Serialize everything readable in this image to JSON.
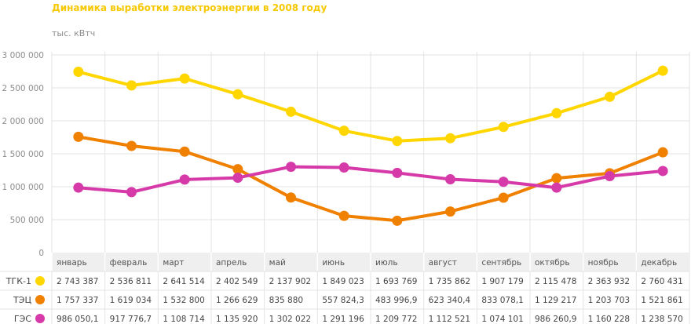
{
  "chart_data": {
    "type": "line",
    "title": "Динамика выработки электроэнергии в 2008 году",
    "ylabel": "тыс. кВтч",
    "ylim": [
      0,
      3000000
    ],
    "yticks": [
      0,
      500000,
      1000000,
      1500000,
      2000000,
      2500000,
      3000000
    ],
    "ytick_labels": [
      "0",
      "500 000",
      "1 000 000",
      "1 500 000",
      "2 000 000",
      "2 500 000",
      "3 000 000"
    ],
    "categories": [
      "январь",
      "февраль",
      "март",
      "апрель",
      "май",
      "июнь",
      "июль",
      "август",
      "сентябрь",
      "октябрь",
      "ноябрь",
      "декабрь"
    ],
    "grid": true,
    "series": [
      {
        "name": "ТГК-1",
        "color": "#ffd600",
        "values": [
          2743387,
          2536811,
          2641514,
          2402549,
          2137902,
          1849023,
          1693769,
          1735862,
          1907179,
          2115478,
          2363932,
          2760431
        ],
        "labels": [
          "2 743 387",
          "2 536 811",
          "2 641 514",
          "2 402 549",
          "2 137 902",
          "1 849 023",
          "1 693 769",
          "1 735 862",
          "1 907 179",
          "2 115 478",
          "2 363 932",
          "2 760 431"
        ]
      },
      {
        "name": "ТЭЦ",
        "color": "#f08000",
        "values": [
          1757337,
          1619034,
          1532800,
          1266629,
          835880,
          557824.3,
          483996.9,
          623340.4,
          833078.1,
          1129217,
          1203703,
          1521861
        ],
        "labels": [
          "1 757 337",
          "1 619 034",
          "1 532 800",
          "1 266 629",
          "835 880",
          "557 824,3",
          "483 996,9",
          "623 340,4",
          "833 078,1",
          "1 129 217",
          "1 203 703",
          "1 521 861"
        ]
      },
      {
        "name": "ГЭС",
        "color": "#d63aa8",
        "values": [
          986050.1,
          917776.7,
          1108714,
          1135920,
          1302022,
          1291196,
          1209772,
          1112521,
          1074101,
          986260.9,
          1160228,
          1238570
        ],
        "labels": [
          "986 050,1",
          "917 776,7",
          "1 108 714",
          "1 135 920",
          "1 302 022",
          "1 291 196",
          "1 209 772",
          "1 112 521",
          "1 074 101",
          "986 260,9",
          "1 160 228",
          "1 238 570"
        ]
      }
    ]
  }
}
